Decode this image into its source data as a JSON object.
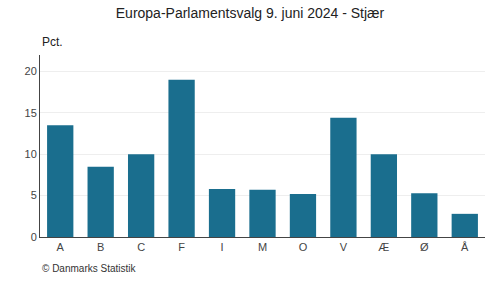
{
  "chart_data": {
    "type": "bar",
    "title": "Europa-Parlamentsvalg 9. juni 2024 - Stjær",
    "categories": [
      "A",
      "B",
      "C",
      "F",
      "I",
      "M",
      "O",
      "V",
      "Æ",
      "Ø",
      "Å"
    ],
    "values": [
      13.5,
      8.5,
      10.0,
      19.0,
      5.8,
      5.7,
      5.2,
      14.4,
      10.0,
      5.3,
      2.8
    ],
    "color": "#1a6e8e",
    "ylabel": "Pct.",
    "footer": "© Danmarks Statistik",
    "ylim": [
      0,
      22
    ],
    "yticks": [
      0,
      5,
      10,
      15,
      20
    ],
    "grid": true
  }
}
